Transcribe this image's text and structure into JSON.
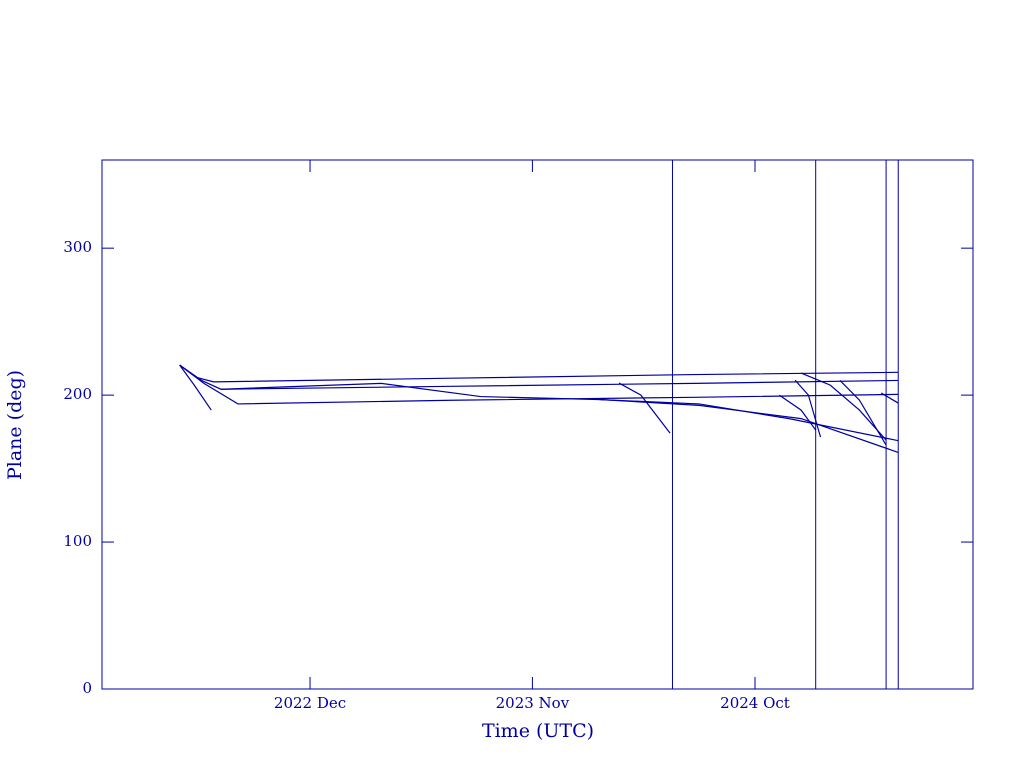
{
  "chart_data": {
    "type": "line",
    "x_label": "Time (UTC)",
    "y_label": "Plane (deg)",
    "xlim": [
      2022.06,
      2025.648
    ],
    "ylim": [
      0,
      360
    ],
    "xticks": [
      {
        "value": 2022.917,
        "label": "2022 Dec"
      },
      {
        "value": 2023.833,
        "label": "2023 Nov"
      },
      {
        "value": 2024.75,
        "label": "2024 Oct"
      }
    ],
    "yticks": [
      0,
      100,
      200,
      300
    ],
    "vlines": [
      2024.41,
      2025.0,
      2025.29,
      2025.34
    ],
    "color": "#0000a0",
    "series": [
      {
        "color": "#0000a0",
        "x": [
          2022.38,
          2022.44,
          2022.51
        ],
        "values": [
          220.4,
          206.8,
          189.8
        ]
      },
      {
        "color": "#0000a0",
        "x": [
          2022.38,
          2022.45,
          2022.52,
          2023.5,
          2024.5,
          2025.34
        ],
        "values": [
          220.4,
          212,
          209,
          211.5,
          214,
          215.5
        ]
      },
      {
        "color": "#0000a0",
        "x": [
          2022.38,
          2022.47,
          2022.55,
          2023.5,
          2024.5,
          2025.34
        ],
        "values": [
          220.4,
          210,
          204,
          206,
          208,
          210
        ]
      },
      {
        "color": "#0000a0",
        "x": [
          2022.38,
          2022.48,
          2022.62,
          2023.5,
          2024.5,
          2025.34
        ],
        "values": [
          220.4,
          208,
          194,
          196.5,
          198.5,
          200.5
        ]
      },
      {
        "color": "#0000a0",
        "x": [
          2022.55,
          2023.21,
          2023.62,
          2024.1,
          2024.52,
          2024.89,
          2025.34
        ],
        "values": [
          204,
          208,
          199,
          197,
          194,
          184,
          169
        ]
      },
      {
        "color": "#0000a0",
        "x": [
          2024.11,
          2024.52,
          2024.94,
          2025.34
        ],
        "values": [
          197,
          193,
          184,
          161
        ]
      },
      {
        "color": "#0000a0",
        "x": [
          2024.19,
          2024.28,
          2024.4
        ],
        "values": [
          208.2,
          200,
          174.1
        ]
      },
      {
        "color": "#0000a0",
        "x": [
          2024.915,
          2024.97,
          2025.02
        ],
        "values": [
          210.2,
          200,
          171.4
        ]
      },
      {
        "color": "#0000a0",
        "x": [
          2024.85,
          2024.94,
          2025.0
        ],
        "values": [
          200,
          189.8,
          176.2
        ]
      },
      {
        "color": "#0000a0",
        "x": [
          2024.94,
          2025.06,
          2025.18,
          2025.29
        ],
        "values": [
          215,
          206.8,
          189.8,
          169.4
        ]
      },
      {
        "color": "#0000a0",
        "x": [
          2025.1,
          2025.18,
          2025.29
        ],
        "values": [
          210,
          196.6,
          166
        ]
      },
      {
        "color": "#0000a0",
        "x": [
          2025.27,
          2025.34
        ],
        "values": [
          201.4,
          194.6
        ]
      }
    ]
  }
}
